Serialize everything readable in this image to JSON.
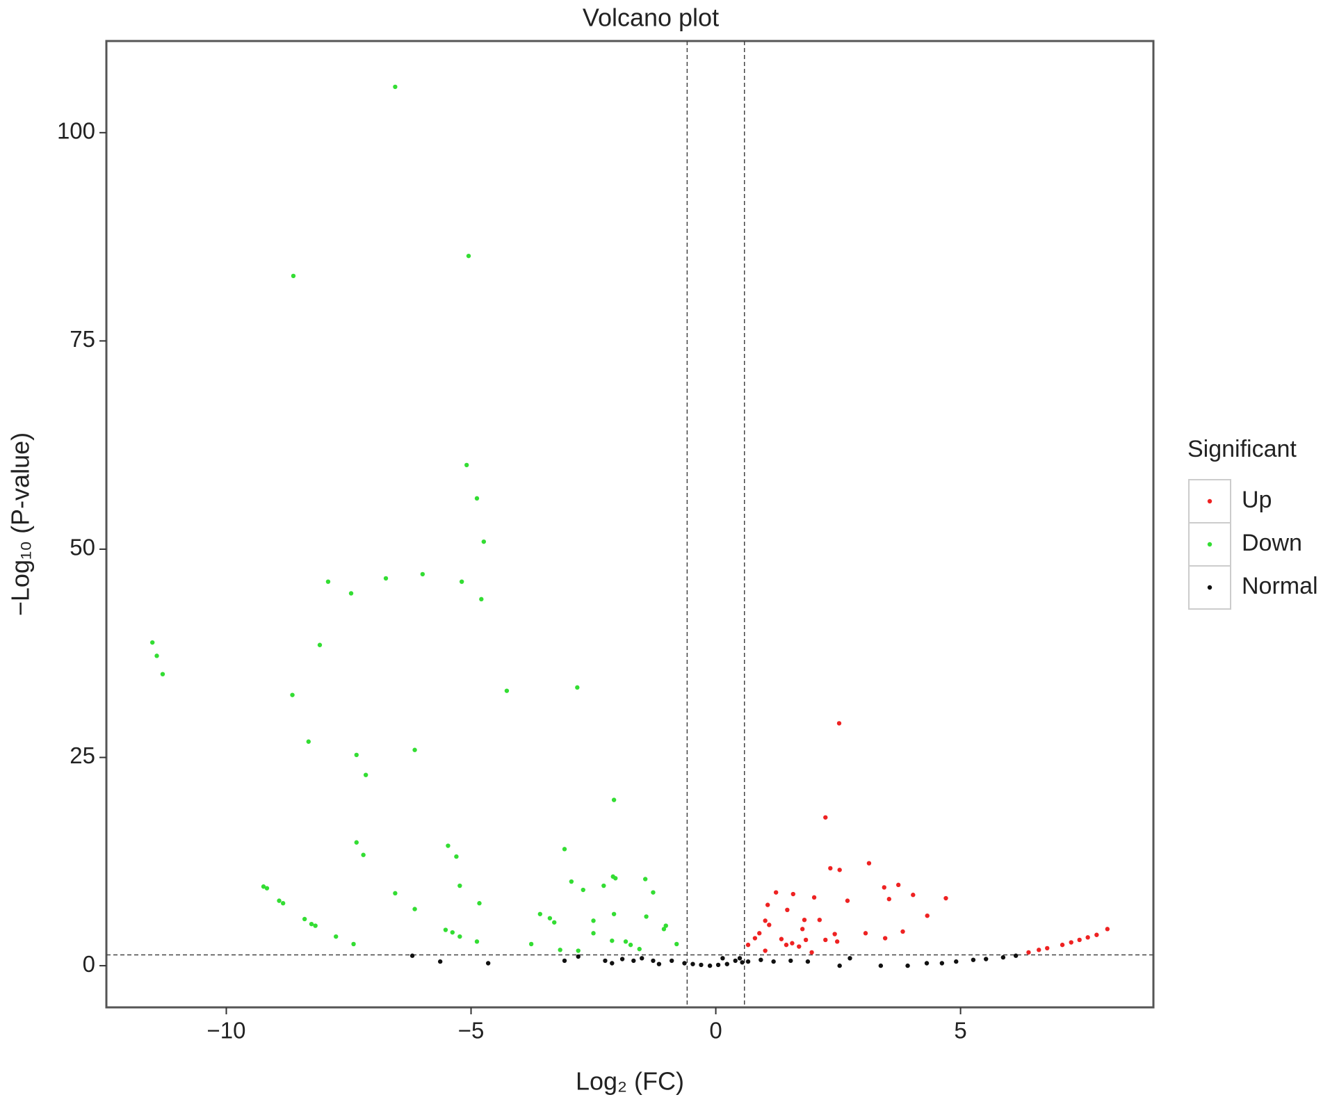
{
  "chart_data": {
    "type": "scatter",
    "title": "Volcano plot",
    "xlabel": "Log₂ (FC)",
    "ylabel": "−Log₁₀ (P-value)",
    "legend_title": "Significant",
    "legend_position": "right",
    "xlim": [
      -12.45,
      8.94
    ],
    "ylim": [
      -5,
      111
    ],
    "xticks": [
      {
        "value": -10,
        "label": "−10"
      },
      {
        "value": -5,
        "label": "−5"
      },
      0,
      5
    ],
    "yticks": [
      0,
      25,
      50,
      75,
      100
    ],
    "thresholds": {
      "x": [
        -0.585,
        0.585
      ],
      "y": 1.3
    },
    "series": [
      {
        "name": "Up",
        "color": "#ee2222",
        "x": [
          2.52,
          2.24,
          2.34,
          2.53,
          3.13,
          1.23,
          1.58,
          2.01,
          3.44,
          3.73,
          3.54,
          4.03,
          4.7,
          2.69,
          1.06,
          1.46,
          4.32,
          1.01,
          1.09,
          1.81,
          2.12,
          0.89,
          0.8,
          0.66,
          1.77,
          1.34,
          1.44,
          1.56,
          1.7,
          1.84,
          2.24,
          2.43,
          2.48,
          3.06,
          3.46,
          3.82,
          8.0,
          7.78,
          7.6,
          7.43,
          7.26,
          7.08,
          6.77,
          6.6,
          6.39,
          1.01,
          1.96
        ],
        "values": [
          29.1,
          17.8,
          11.7,
          11.5,
          12.3,
          8.8,
          8.6,
          8.2,
          9.4,
          9.7,
          8.0,
          8.5,
          8.1,
          7.8,
          7.3,
          6.7,
          6.0,
          5.4,
          4.9,
          5.5,
          5.5,
          3.9,
          3.3,
          2.5,
          4.4,
          3.2,
          2.5,
          2.7,
          2.3,
          3.1,
          3.1,
          3.8,
          2.9,
          3.9,
          3.3,
          4.1,
          4.4,
          3.7,
          3.4,
          3.1,
          2.8,
          2.5,
          2.1,
          1.9,
          1.6,
          1.8,
          1.6
        ]
      },
      {
        "name": "Down",
        "color": "#33dd33",
        "x": [
          -6.55,
          -5.05,
          -8.63,
          -5.09,
          -4.88,
          -4.74,
          -6.74,
          -5.99,
          -7.92,
          -7.45,
          -5.19,
          -4.79,
          -11.51,
          -11.42,
          -11.3,
          -8.09,
          -8.65,
          -4.27,
          -2.83,
          -8.32,
          -6.15,
          -7.34,
          -7.15,
          -2.08,
          -7.34,
          -7.2,
          -5.47,
          -5.3,
          -3.09,
          -9.24,
          -9.17,
          -8.92,
          -8.84,
          -6.55,
          -5.23,
          -4.83,
          -6.15,
          -2.95,
          -2.71,
          -2.29,
          -2.1,
          -2.05,
          -1.44,
          -1.28,
          -2.08,
          -1.42,
          -3.59,
          -3.39,
          -3.3,
          -2.5,
          -2.5,
          -1.02,
          -1.06,
          -8.4,
          -8.26,
          -8.18,
          -7.76,
          -7.4,
          -5.52,
          -5.38,
          -5.23,
          -4.88,
          -3.77,
          -3.18,
          -2.81,
          -2.12,
          -1.84,
          -1.74,
          -1.56,
          -0.8
        ],
        "values": [
          105.5,
          85.2,
          82.8,
          60.1,
          56.1,
          50.9,
          46.5,
          47.0,
          46.1,
          44.7,
          46.1,
          44.0,
          38.8,
          37.2,
          35.0,
          38.5,
          32.5,
          33.0,
          33.4,
          26.9,
          25.9,
          25.3,
          22.9,
          19.9,
          14.8,
          13.3,
          14.4,
          13.1,
          14.0,
          9.5,
          9.3,
          7.8,
          7.5,
          8.7,
          9.6,
          7.5,
          6.8,
          10.1,
          9.1,
          9.6,
          10.7,
          10.5,
          10.4,
          8.8,
          6.2,
          5.9,
          6.2,
          5.7,
          5.2,
          5.4,
          3.9,
          4.8,
          4.4,
          5.6,
          5.0,
          4.8,
          3.5,
          2.6,
          4.3,
          4.0,
          3.5,
          2.9,
          2.6,
          1.9,
          1.8,
          3.0,
          2.9,
          2.5,
          2.0,
          2.6
        ]
      },
      {
        "name": "Normal",
        "color": "#111111",
        "x": [
          -6.2,
          -5.63,
          -4.65,
          -3.09,
          -2.81,
          -2.26,
          -2.12,
          -1.91,
          -1.68,
          -1.51,
          -1.28,
          -1.16,
          -0.9,
          -0.64,
          -0.47,
          -0.3,
          -0.12,
          0.05,
          0.23,
          0.4,
          0.49,
          0.66,
          0.92,
          1.18,
          1.53,
          1.88,
          2.53,
          3.37,
          3.92,
          4.31,
          4.62,
          4.91,
          5.26,
          5.52,
          5.87,
          6.13,
          2.74,
          0.14,
          0.54
        ],
        "values": [
          1.2,
          0.5,
          0.3,
          0.6,
          1.1,
          0.6,
          0.3,
          0.8,
          0.6,
          0.9,
          0.6,
          0.2,
          0.6,
          0.3,
          0.2,
          0.1,
          0.0,
          0.1,
          0.2,
          0.6,
          0.9,
          0.5,
          0.7,
          0.5,
          0.6,
          0.5,
          0.0,
          0.0,
          0.0,
          0.3,
          0.3,
          0.5,
          0.7,
          0.8,
          1.0,
          1.2,
          0.9,
          0.9,
          0.4
        ]
      }
    ]
  }
}
